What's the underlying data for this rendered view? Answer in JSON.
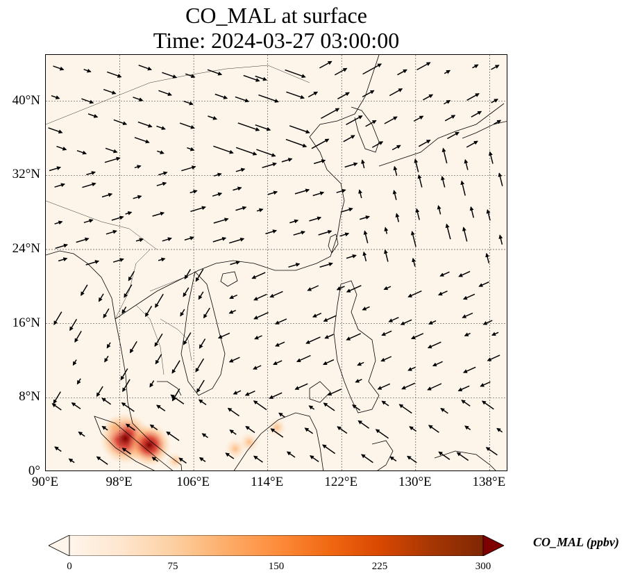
{
  "title": {
    "line1": "CO_MAL at surface",
    "line2": "Time: 2024-03-27 03:00:00"
  },
  "map": {
    "type": "wind-vector-over-concentration-field",
    "extent": {
      "lon": [
        90,
        140
      ],
      "lat": [
        0,
        45
      ]
    },
    "background_color": "#fdf5ea",
    "gridlines": "dotted",
    "lat_ticks": [
      {
        "value": 0,
        "label": "0°"
      },
      {
        "value": 8,
        "label": "8°N"
      },
      {
        "value": 16,
        "label": "16°N"
      },
      {
        "value": 24,
        "label": "24°N"
      },
      {
        "value": 32,
        "label": "32°N"
      },
      {
        "value": 40,
        "label": "40°N"
      }
    ],
    "lon_ticks": [
      {
        "value": 90,
        "label": "90°E"
      },
      {
        "value": 98,
        "label": "98°E"
      },
      {
        "value": 106,
        "label": "106°E"
      },
      {
        "value": 114,
        "label": "114°E"
      },
      {
        "value": 122,
        "label": "122°E"
      },
      {
        "value": 130,
        "label": "130°E"
      },
      {
        "value": 138,
        "label": "138°E"
      }
    ],
    "hotspots": [
      {
        "lon": 98.6,
        "lat": 3.6,
        "value": 290
      },
      {
        "lon": 101.2,
        "lat": 2.9,
        "value": 230
      },
      {
        "lon": 97.5,
        "lat": 4.8,
        "value": 90
      },
      {
        "lon": 110.5,
        "lat": 2.5,
        "value": 80
      },
      {
        "lon": 112.0,
        "lat": 3.2,
        "value": 70
      },
      {
        "lon": 115.0,
        "lat": 4.8,
        "value": 60
      },
      {
        "lon": 104.0,
        "lat": 1.2,
        "value": 50
      }
    ]
  },
  "colorbar": {
    "label": "CO_MAL (ppbv)",
    "min": 0,
    "max": 300,
    "ticks": [
      "0",
      "75",
      "150",
      "225",
      "300"
    ],
    "colors": [
      "#fff5eb",
      "#fee6ce",
      "#fdd0a2",
      "#fdae6b",
      "#fd8d3c",
      "#f16913",
      "#d94801",
      "#a63603",
      "#7f2704"
    ],
    "extend": "both"
  }
}
